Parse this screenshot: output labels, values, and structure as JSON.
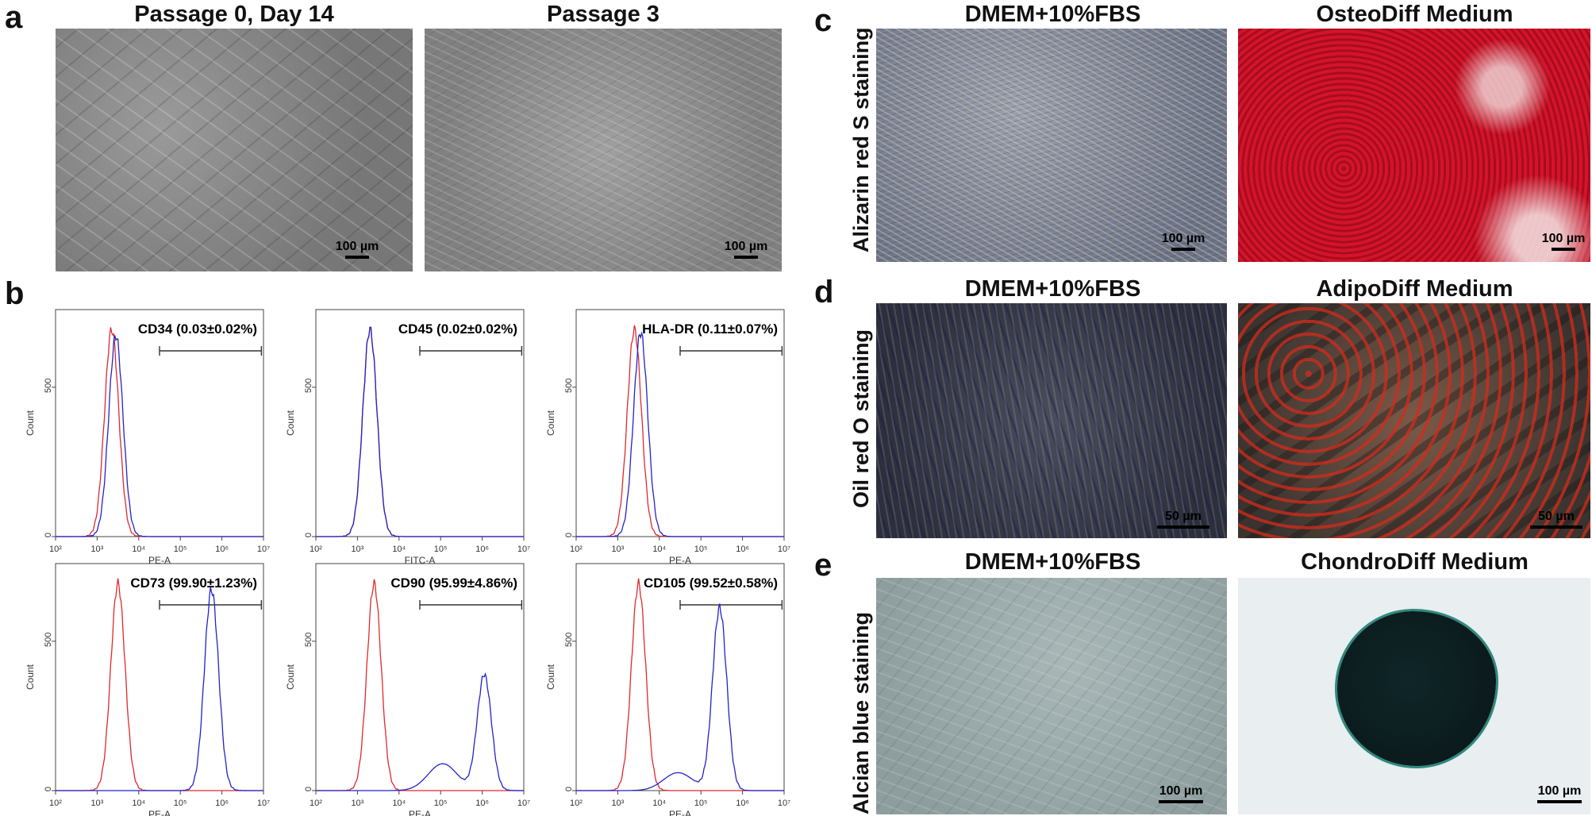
{
  "panels": {
    "a": {
      "letter": "a",
      "images": [
        {
          "title": "Passage 0, Day 14",
          "scale": "100 µm"
        },
        {
          "title": "Passage 3",
          "scale": "100 µm"
        }
      ]
    },
    "b": {
      "letter": "b",
      "histograms": [
        {
          "marker": "CD34 (0.03±0.02%)",
          "xlabel": "PE-A",
          "ylabel": "Count",
          "y_ticks": [
            "0",
            "500"
          ],
          "x_ticks": [
            "10²",
            "10³",
            "10⁴",
            "10⁵",
            "10⁶",
            "10⁷"
          ],
          "control_peak_log": 3.35,
          "sample_peak_log": 3.45,
          "sample_peak_count": 660
        },
        {
          "marker": "CD45 (0.02±0.02%)",
          "xlabel": "FITC-A",
          "ylabel": "Count",
          "y_ticks": [
            "0",
            "500"
          ],
          "x_ticks": [
            "10²",
            "10³",
            "10⁴",
            "10⁵",
            "10⁶",
            "10⁷"
          ],
          "control_peak_log": 3.3,
          "sample_peak_log": 3.3,
          "sample_peak_count": 680
        },
        {
          "marker": "HLA-DR (0.11±0.07%)",
          "xlabel": "PE-A",
          "ylabel": "Count",
          "y_ticks": [
            "0",
            "500"
          ],
          "x_ticks": [
            "10²",
            "10³",
            "10⁴",
            "10⁵",
            "10⁶",
            "10⁷"
          ],
          "control_peak_log": 3.4,
          "sample_peak_log": 3.55,
          "sample_peak_count": 670
        },
        {
          "marker": "CD73 (99.90±1.23%)",
          "xlabel": "PE-A",
          "ylabel": "Count",
          "y_ticks": [
            "0",
            "500"
          ],
          "x_ticks": [
            "10²",
            "10³",
            "10⁴",
            "10⁵",
            "10⁶",
            "10⁷"
          ],
          "control_peak_log": 3.5,
          "sample_peak_log": 5.75,
          "sample_peak_count": 660
        },
        {
          "marker": "CD90 (95.99±4.86%)",
          "xlabel": "PE-A",
          "ylabel": "Count",
          "y_ticks": [
            "0",
            "500"
          ],
          "x_ticks": [
            "10²",
            "10³",
            "10⁴",
            "10⁵",
            "10⁶",
            "10⁷"
          ],
          "control_peak_log": 3.4,
          "sample_peak_log": 6.05,
          "sample_peak_count": 380
        },
        {
          "marker": "CD105 (99.52±0.58%)",
          "xlabel": "PE-A",
          "ylabel": "Count",
          "y_ticks": [
            "0",
            "500"
          ],
          "x_ticks": [
            "10²",
            "10³",
            "10⁴",
            "10⁵",
            "10⁶",
            "10⁷"
          ],
          "control_peak_log": 3.5,
          "sample_peak_log": 5.45,
          "sample_peak_count": 600
        }
      ]
    },
    "c": {
      "letter": "c",
      "row_label": "Alizarin red S staining",
      "images": [
        {
          "title": "DMEM+10%FBS",
          "scale": "100 µm"
        },
        {
          "title": "OsteoDiff Medium",
          "scale": "100 µm"
        }
      ]
    },
    "d": {
      "letter": "d",
      "row_label": "Oil red O staining",
      "images": [
        {
          "title": "DMEM+10%FBS",
          "scale": "50 µm"
        },
        {
          "title": "AdipoDiff Medium",
          "scale": "50 µm"
        }
      ]
    },
    "e": {
      "letter": "e",
      "row_label": "Alcian blue staining",
      "images": [
        {
          "title": "DMEM+10%FBS",
          "scale": "100 µm"
        },
        {
          "title": "ChondroDiff Medium",
          "scale": "100 µm"
        }
      ]
    }
  },
  "colors": {
    "control": "#e0282e",
    "sample": "#2323c8",
    "alizarin": "#d3142a",
    "oilred": "#d42a1a"
  }
}
